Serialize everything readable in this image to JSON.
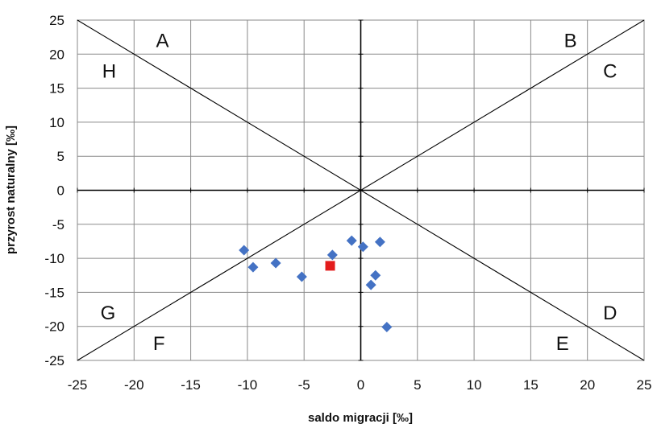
{
  "chart_data": {
    "type": "scatter",
    "title": "",
    "xlabel": "saldo migracji [‰]",
    "ylabel": "przyrost naturalny [‰]",
    "xlim": [
      -25,
      25
    ],
    "ylim": [
      -25,
      25
    ],
    "x_ticks": [
      -25,
      -20,
      -15,
      -10,
      -5,
      0,
      5,
      10,
      15,
      20,
      25
    ],
    "y_ticks": [
      -25,
      -20,
      -15,
      -10,
      -5,
      0,
      5,
      10,
      15,
      20,
      25
    ],
    "grid": true,
    "reference_lines": [
      {
        "from": [
          -25,
          -25
        ],
        "to": [
          25,
          25
        ]
      },
      {
        "from": [
          -25,
          25
        ],
        "to": [
          25,
          -25
        ]
      }
    ],
    "region_labels": [
      {
        "text": "A",
        "x": -17.5,
        "y": 22
      },
      {
        "text": "B",
        "x": 18.5,
        "y": 22
      },
      {
        "text": "C",
        "x": 22,
        "y": 17.5
      },
      {
        "text": "D",
        "x": 22,
        "y": -18
      },
      {
        "text": "E",
        "x": 17.8,
        "y": -22.5
      },
      {
        "text": "F",
        "x": -17.8,
        "y": -22.5
      },
      {
        "text": "G",
        "x": -22.3,
        "y": -18
      },
      {
        "text": "H",
        "x": -22.2,
        "y": 17.5
      }
    ],
    "series": [
      {
        "marker": "diamond",
        "color": "#4472C4",
        "points": [
          [
            -10.3,
            -8.8
          ],
          [
            -9.5,
            -11.3
          ],
          [
            -7.5,
            -10.7
          ],
          [
            -5.2,
            -12.7
          ],
          [
            -2.5,
            -9.5
          ],
          [
            -0.8,
            -7.4
          ],
          [
            0.2,
            -8.3
          ],
          [
            1.7,
            -7.6
          ],
          [
            1.3,
            -12.5
          ],
          [
            0.9,
            -13.9
          ],
          [
            2.3,
            -20.1
          ]
        ]
      },
      {
        "marker": "square",
        "color": "#E31C1C",
        "points": [
          [
            -2.7,
            -11.1
          ]
        ]
      }
    ]
  }
}
